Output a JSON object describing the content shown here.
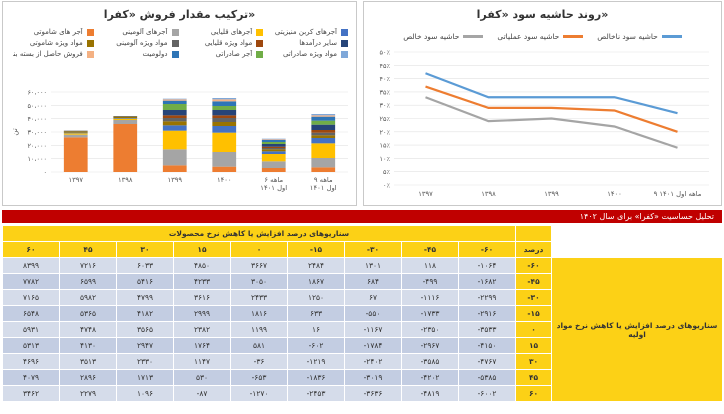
{
  "stack_chart": {
    "title": "ترکیب مقدار فروش «کفرا»",
    "legend": [
      {
        "label": "آجرهای کربن منیزیتی",
        "color": "#4472c4"
      },
      {
        "label": "آجرهای قلیایی",
        "color": "#ffc000"
      },
      {
        "label": "آجرهای آلومینی",
        "color": "#a5a5a5"
      },
      {
        "label": "آجر های شاموتی",
        "color": "#ed7d31"
      },
      {
        "label": "سایر درآمدها",
        "color": "#264478"
      },
      {
        "label": "مواد ویژه قلیایی",
        "color": "#9e480e"
      },
      {
        "label": "مواد ویژه آلومینی",
        "color": "#636363"
      },
      {
        "label": "مواد ویژه شاموتی",
        "color": "#997300"
      },
      {
        "label": "مواد ویژه صادراتی",
        "color": "#7fa8d9"
      },
      {
        "label": "آجر صادراتی",
        "color": "#70ad47"
      },
      {
        "label": "دولومیت",
        "color": "#2e75b6"
      },
      {
        "label": "فروش حاصل از بسته بندی",
        "color": "#f4b183"
      }
    ]
  },
  "line_chart": {
    "title": "روند حاشیه سود «کفرا»",
    "series_labels": [
      "حاشیه سود ناخالص",
      "حاشیه سود عملیاتی",
      "حاشیه سود خالص"
    ],
    "series_colors": [
      "#5b9bd5",
      "#ed7d31",
      "#a5a5a5"
    ]
  },
  "chart_data": [
    {
      "type": "bar",
      "title": "ترکیب مقدار فروش «کفرا»",
      "categories": [
        "۱۳۹۷",
        "۱۳۹۸",
        "۱۳۹۹",
        "۱۴۰۰",
        "۶ ماهه اول ۱۴۰۱",
        "۹ ماهه اول ۱۴۰۱"
      ],
      "tick_labels": [
        "۰",
        "۱۰،۰۰۰",
        "۲۰،۰۰۰",
        "۳۰،۰۰۰",
        "۴۰،۰۰۰",
        "۵۰،۰۰۰",
        "۶۰،۰۰۰"
      ],
      "ylabel": "تن",
      "ylim": [
        0,
        60000
      ],
      "stacked": true,
      "series": [
        {
          "name": "آجر های شاموتی",
          "color": "#ed7d31",
          "values": [
            26000,
            36000,
            5000,
            4000,
            3000,
            3500
          ]
        },
        {
          "name": "آجرهای آلومینی",
          "color": "#a5a5a5",
          "values": [
            2000,
            3000,
            12000,
            11000,
            5000,
            7000
          ]
        },
        {
          "name": "آجرهای قلیایی",
          "color": "#ffc000",
          "values": [
            1000,
            1000,
            14000,
            14500,
            5500,
            11000
          ]
        },
        {
          "name": "آجرهای کربن منیزیتی",
          "color": "#4472c4",
          "values": [
            500,
            500,
            4000,
            5000,
            2000,
            4000
          ]
        },
        {
          "name": "مواد ویژه شاموتی",
          "color": "#997300",
          "values": [
            1000,
            1000,
            3000,
            3000,
            1500,
            2000
          ]
        },
        {
          "name": "مواد ویژه آلومینی",
          "color": "#636363",
          "values": [
            500,
            500,
            2500,
            3000,
            1000,
            2000
          ]
        },
        {
          "name": "مواد ویژه قلیایی",
          "color": "#9e480e",
          "values": [
            0,
            0,
            2000,
            2000,
            1000,
            2000
          ]
        },
        {
          "name": "سایر درآمدها",
          "color": "#264478",
          "values": [
            0,
            0,
            4000,
            4000,
            2000,
            4000
          ]
        },
        {
          "name": "آجر صادراتی",
          "color": "#70ad47",
          "values": [
            0,
            0,
            4500,
            3000,
            1500,
            3000
          ]
        },
        {
          "name": "دولومیت",
          "color": "#2e75b6",
          "values": [
            0,
            0,
            2500,
            3500,
            1500,
            3000
          ]
        },
        {
          "name": "فروش حاصل از بسته بندی",
          "color": "#f4b183",
          "values": [
            0,
            0,
            1000,
            1500,
            500,
            1000
          ]
        },
        {
          "name": "مواد ویژه صادراتی",
          "color": "#7fa8d9",
          "values": [
            0,
            0,
            500,
            1000,
            500,
            1000
          ]
        }
      ]
    },
    {
      "type": "line",
      "title": "روند حاشیه سود «کفرا»",
      "categories": [
        "۱۳۹۷",
        "۱۳۹۸",
        "۱۳۹۹",
        "۱۴۰۰",
        "۹ ماهه اول ۱۴۰۱"
      ],
      "tick_labels": [
        "۰٪",
        "۵٪",
        "۱۰٪",
        "۱۵٪",
        "۲۰٪",
        "۲۵٪",
        "۳۰٪",
        "۳۵٪",
        "۴۰٪",
        "۴۵٪",
        "۵۰٪"
      ],
      "ylim": [
        0,
        50
      ],
      "series": [
        {
          "name": "حاشیه سود ناخالص",
          "color": "#5b9bd5",
          "values": [
            42,
            33,
            33,
            33,
            27
          ]
        },
        {
          "name": "حاشیه سود عملیاتی",
          "color": "#ed7d31",
          "values": [
            37,
            29,
            29,
            28,
            20
          ]
        },
        {
          "name": "حاشیه سود خالص",
          "color": "#a5a5a5",
          "values": [
            33,
            24,
            25,
            22,
            14
          ]
        }
      ]
    },
    {
      "type": "table",
      "title": "تحلیل حساسیت «کفرا» برای سال ۱۴۰۲",
      "header_title": "سناریوهای درصد افزایش یا کاهش نرخ محصولات",
      "row_title": "سناریوهای درصد افزایش یا کاهش نرخ مواد اولیه",
      "percent_label": "درصد",
      "columns": [
        "-۶۰",
        "-۴۵",
        "-۳۰",
        "-۱۵",
        "۰",
        "۱۵",
        "۳۰",
        "۴۵",
        "۶۰"
      ],
      "rows": [
        {
          "pct": "-۶۰",
          "cells": [
            "-۱۰۶۴",
            "۱۱۸",
            "۱۳۰۱",
            "۲۴۸۴",
            "۳۶۶۷",
            "۴۸۵۰",
            "۶۰۳۳",
            "۷۲۱۶",
            "۸۳۹۹"
          ]
        },
        {
          "pct": "-۴۵",
          "cells": [
            "-۱۶۸۲",
            "-۴۹۹",
            "۶۸۴",
            "۱۸۶۷",
            "۳۰۵۰",
            "۴۲۳۳",
            "۵۴۱۶",
            "۶۵۹۹",
            "۷۷۸۲"
          ]
        },
        {
          "pct": "-۳۰",
          "cells": [
            "-۲۲۹۹",
            "-۱۱۱۶",
            "۶۷",
            "۱۲۵۰",
            "۲۴۳۳",
            "۳۶۱۶",
            "۴۷۹۹",
            "۵۹۸۲",
            "۷۱۶۵"
          ]
        },
        {
          "pct": "-۱۵",
          "cells": [
            "-۲۹۱۶",
            "-۱۷۳۳",
            "-۵۵۰",
            "۶۳۳",
            "۱۸۱۶",
            "۲۹۹۹",
            "۴۱۸۲",
            "۵۳۶۵",
            "۶۵۴۸"
          ]
        },
        {
          "pct": "۰",
          "cells": [
            "-۳۵۳۳",
            "-۲۳۵۰",
            "-۱۱۶۷",
            "۱۶",
            "۱۱۹۹",
            "۲۳۸۲",
            "۳۵۶۵",
            "۴۷۴۸",
            "۵۹۳۱"
          ]
        },
        {
          "pct": "۱۵",
          "cells": [
            "-۴۱۵۰",
            "-۲۹۶۷",
            "-۱۷۸۴",
            "-۶۰۲",
            "۵۸۱",
            "۱۷۶۴",
            "۲۹۴۷",
            "۴۱۳۰",
            "۵۳۱۳"
          ]
        },
        {
          "pct": "۳۰",
          "cells": [
            "-۴۷۶۷",
            "-۳۵۸۵",
            "-۲۴۰۲",
            "-۱۲۱۹",
            "-۳۶",
            "۱۱۴۷",
            "۲۳۳۰",
            "۳۵۱۳",
            "۴۶۹۶"
          ]
        },
        {
          "pct": "۴۵",
          "cells": [
            "-۵۳۸۵",
            "-۴۲۰۲",
            "-۳۰۱۹",
            "-۱۸۳۶",
            "-۶۵۳",
            "۵۳۰",
            "۱۷۱۳",
            "۲۸۹۶",
            "۴۰۷۹"
          ]
        },
        {
          "pct": "۶۰",
          "cells": [
            "-۶۰۰۲",
            "-۴۸۱۹",
            "-۳۶۳۶",
            "-۲۴۵۳",
            "-۱۲۷۰",
            "-۸۷",
            "۱۰۹۶",
            "۲۲۷۹",
            "۳۴۶۲"
          ]
        }
      ]
    }
  ]
}
